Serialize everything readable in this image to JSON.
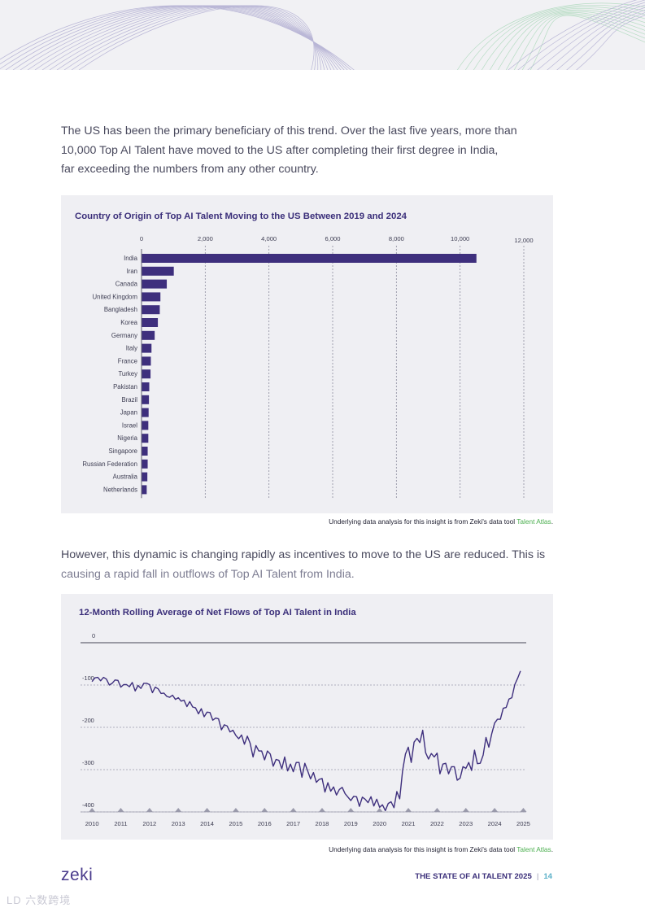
{
  "intro": {
    "line1": "The US has been the primary beneficiary of this trend. Over the last five years, more than",
    "line2": "10,000 Top AI Talent have moved to the US after completing their first degree in India,",
    "line3": "far exceeding the numbers from any other country."
  },
  "transition": {
    "line1": "However, this dynamic is changing rapidly as incentives to move to the US are reduced. This is",
    "line2": "causing a rapid fall in outflows of Top AI Talent from India."
  },
  "chart_data": [
    {
      "type": "bar",
      "orientation": "horizontal",
      "title": "Country of Origin of Top AI Talent Moving to the US Between 2019 and 2024",
      "categories": [
        "India",
        "Iran",
        "Canada",
        "United Kingdom",
        "Bangladesh",
        "Korea",
        "Germany",
        "Italy",
        "France",
        "Turkey",
        "Pakistan",
        "Brazil",
        "Japan",
        "Israel",
        "Nigeria",
        "Singapore",
        "Russian Federation",
        "Australia",
        "Netherlands"
      ],
      "values": [
        10500,
        1000,
        780,
        580,
        560,
        500,
        400,
        300,
        280,
        270,
        230,
        220,
        210,
        200,
        200,
        180,
        180,
        170,
        150
      ],
      "xlim": [
        0,
        12000
      ],
      "xticks": [
        0,
        2000,
        4000,
        6000,
        8000,
        10000,
        12000
      ],
      "xtick_labels": [
        "0",
        "2,000",
        "4,000",
        "6,000",
        "8,000",
        "10,000",
        "12,000"
      ],
      "grid": true,
      "color": "#3e2f7d"
    },
    {
      "type": "line",
      "title": "12-Month Rolling Average of Net Flows of Top AI Talent in India",
      "ylim": [
        -400,
        0
      ],
      "yticks": [
        0,
        -100,
        -200,
        -300,
        -400
      ],
      "ytick_labels": [
        "0",
        "-100",
        "-200",
        "-300",
        "-400"
      ],
      "xlim": [
        2009.6,
        2025.1
      ],
      "xticks": [
        2010,
        2011,
        2012,
        2013,
        2014,
        2015,
        2016,
        2017,
        2018,
        2019,
        2020,
        2021,
        2022,
        2023,
        2024,
        2025
      ],
      "xtick_labels": [
        "2010",
        "2011",
        "2012",
        "2013",
        "2014",
        "2015",
        "2016",
        "2017",
        "2018",
        "2019",
        "2020",
        "2021",
        "2022",
        "2023",
        "2024",
        "2025"
      ],
      "color": "#3e2f7d",
      "x": [
        2010.0,
        2010.1,
        2010.2,
        2010.3,
        2010.4,
        2010.5,
        2010.6,
        2010.7,
        2010.8,
        2010.9,
        2011.0,
        2011.1,
        2011.2,
        2011.3,
        2011.4,
        2011.5,
        2011.6,
        2011.7,
        2011.8,
        2011.9,
        2012.0,
        2012.1,
        2012.2,
        2012.3,
        2012.4,
        2012.5,
        2012.6,
        2012.7,
        2012.8,
        2012.9,
        2013.0,
        2013.1,
        2013.2,
        2013.3,
        2013.4,
        2013.5,
        2013.6,
        2013.7,
        2013.8,
        2013.9,
        2014.0,
        2014.1,
        2014.2,
        2014.3,
        2014.4,
        2014.5,
        2014.6,
        2014.7,
        2014.8,
        2014.9,
        2015.0,
        2015.1,
        2015.2,
        2015.3,
        2015.4,
        2015.5,
        2015.6,
        2015.7,
        2015.8,
        2015.9,
        2016.0,
        2016.1,
        2016.2,
        2016.3,
        2016.4,
        2016.5,
        2016.6,
        2016.7,
        2016.8,
        2016.9,
        2017.0,
        2017.1,
        2017.2,
        2017.3,
        2017.4,
        2017.5,
        2017.6,
        2017.7,
        2017.8,
        2017.9,
        2018.0,
        2018.1,
        2018.2,
        2018.3,
        2018.4,
        2018.5,
        2018.6,
        2018.7,
        2018.8,
        2018.9,
        2019.0,
        2019.1,
        2019.2,
        2019.3,
        2019.4,
        2019.5,
        2019.6,
        2019.7,
        2019.8,
        2019.9,
        2020.0,
        2020.1,
        2020.2,
        2020.3,
        2020.4,
        2020.5,
        2020.6,
        2020.7,
        2020.8,
        2020.9,
        2021.0,
        2021.1,
        2021.2,
        2021.3,
        2021.4,
        2021.5,
        2021.6,
        2021.7,
        2021.8,
        2021.9,
        2022.0,
        2022.1,
        2022.2,
        2022.3,
        2022.4,
        2022.5,
        2022.6,
        2022.7,
        2022.8,
        2022.9,
        2023.0,
        2023.1,
        2023.2,
        2023.3,
        2023.4,
        2023.5,
        2023.6,
        2023.7,
        2023.8,
        2023.9,
        2024.0,
        2024.1,
        2024.2,
        2024.3,
        2024.4,
        2024.5,
        2024.6,
        2024.7,
        2024.8,
        2024.9
      ],
      "y": [
        -92,
        -83,
        -82,
        -90,
        -82,
        -86,
        -100,
        -96,
        -88,
        -89,
        -105,
        -99,
        -99,
        -104,
        -94,
        -114,
        -101,
        -108,
        -96,
        -96,
        -99,
        -118,
        -105,
        -109,
        -120,
        -119,
        -127,
        -129,
        -124,
        -134,
        -130,
        -138,
        -136,
        -151,
        -139,
        -152,
        -154,
        -168,
        -156,
        -175,
        -164,
        -165,
        -183,
        -178,
        -180,
        -206,
        -194,
        -197,
        -211,
        -207,
        -219,
        -227,
        -218,
        -240,
        -221,
        -238,
        -270,
        -243,
        -256,
        -256,
        -277,
        -256,
        -263,
        -292,
        -276,
        -278,
        -298,
        -270,
        -303,
        -287,
        -305,
        -283,
        -283,
        -318,
        -285,
        -303,
        -322,
        -307,
        -330,
        -323,
        -321,
        -353,
        -331,
        -351,
        -341,
        -360,
        -347,
        -342,
        -357,
        -365,
        -373,
        -363,
        -364,
        -387,
        -365,
        -370,
        -378,
        -364,
        -386,
        -370,
        -389,
        -383,
        -397,
        -380,
        -376,
        -390,
        -352,
        -369,
        -302,
        -263,
        -247,
        -283,
        -235,
        -226,
        -236,
        -207,
        -260,
        -275,
        -262,
        -270,
        -261,
        -310,
        -287,
        -285,
        -310,
        -293,
        -293,
        -325,
        -320,
        -293,
        -297,
        -283,
        -302,
        -254,
        -286,
        -285,
        -266,
        -224,
        -247,
        -215,
        -190,
        -181,
        -181,
        -155,
        -153,
        -133,
        -130,
        -99,
        -84,
        -67
      ]
    }
  ],
  "chart1_source": {
    "prefix": "Underlying data analysis for this insight is from Zeki's data tool ",
    "tool": "Talent Atlas",
    "suffix": "."
  },
  "chart2_source": {
    "prefix": "Underlying data analysis for this insight is from Zeki's data tool ",
    "tool": "Talent Atlas",
    "suffix": "."
  },
  "footer": {
    "logo": "zeki",
    "report": "THE STATE OF AI TALENT 2025",
    "separator": "|",
    "page": "14"
  },
  "watermark": "LD 六数跨境",
  "colors": {
    "bar": "#3e2f7d",
    "title": "#3b2f7a",
    "panel": "#efeff3",
    "link": "#4caf50",
    "page_number": "#5bb0c8"
  }
}
